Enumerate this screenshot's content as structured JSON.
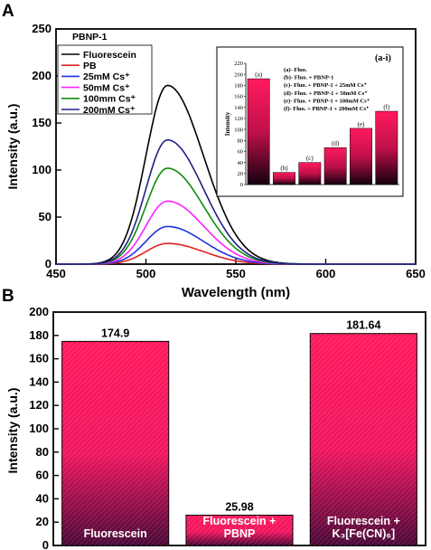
{
  "chart_data": [
    {
      "panel": "A",
      "type": "line",
      "title": "PBNP-1",
      "xlabel": "Wavelength (nm)",
      "ylabel": "Intensity (a.u.)",
      "xlim": [
        450,
        650
      ],
      "ylim": [
        0,
        250
      ],
      "xticks": [
        450,
        500,
        550,
        600,
        650
      ],
      "yticks": [
        0,
        50,
        100,
        150,
        200,
        250
      ],
      "peak_wavelength": 512,
      "legend_position": "top-left",
      "series": [
        {
          "name": "Fluorescein",
          "peak": 190,
          "color": "#000000"
        },
        {
          "name": "PB",
          "peak": 22,
          "color": "#e02020"
        },
        {
          "name": "25mM Cs⁺",
          "peak": 40,
          "color": "#2030e0"
        },
        {
          "name": "50mM Cs⁺",
          "peak": 67,
          "color": "#ff20ff"
        },
        {
          "name": "100mm Cs⁺",
          "peak": 102,
          "color": "#108a10"
        },
        {
          "name": "200mM Cs⁺",
          "peak": 132,
          "color": "#20208a"
        }
      ],
      "inset": {
        "title": "(a-i)",
        "type": "bar",
        "ylabel": "Intensity",
        "ylim": [
          0,
          220
        ],
        "yticks": [
          0,
          20,
          40,
          60,
          80,
          100,
          120,
          140,
          160,
          180,
          200,
          220
        ],
        "categories": [
          "(a)",
          "(b)",
          "(c)",
          "(d)",
          "(e)",
          "(f)"
        ],
        "values": [
          192,
          22,
          40,
          67,
          102,
          133
        ],
        "legend": [
          "(a)- Fluo.",
          "(b)- Fluo. + PBNP-1",
          "(c)- Fluo. + PBNP-1 + 25mM Cs⁺",
          "(d)- Fluo. + PBNP-1 + 50mM Cs⁺",
          "(e)- Fluo. + PBNP-1 + 100mM Cs⁺",
          "(f)- Fluo. + PBNP-1 + 200mM Cs⁺"
        ]
      }
    },
    {
      "panel": "B",
      "type": "bar",
      "ylabel": "Intensity (a.u.)",
      "ylim": [
        0,
        200
      ],
      "yticks": [
        0,
        20,
        40,
        60,
        80,
        100,
        120,
        140,
        160,
        180,
        200
      ],
      "categories": [
        [
          "Fluorescein"
        ],
        [
          "Fluorescein +",
          "PBNP"
        ],
        [
          "Fluorescein +",
          "K₃[Fe(CN)₆]"
        ]
      ],
      "values": [
        174.9,
        25.98,
        181.64
      ],
      "value_labels": [
        "174.9",
        "25.98",
        "181.64"
      ],
      "bar_color": "#ff1a5e"
    }
  ]
}
